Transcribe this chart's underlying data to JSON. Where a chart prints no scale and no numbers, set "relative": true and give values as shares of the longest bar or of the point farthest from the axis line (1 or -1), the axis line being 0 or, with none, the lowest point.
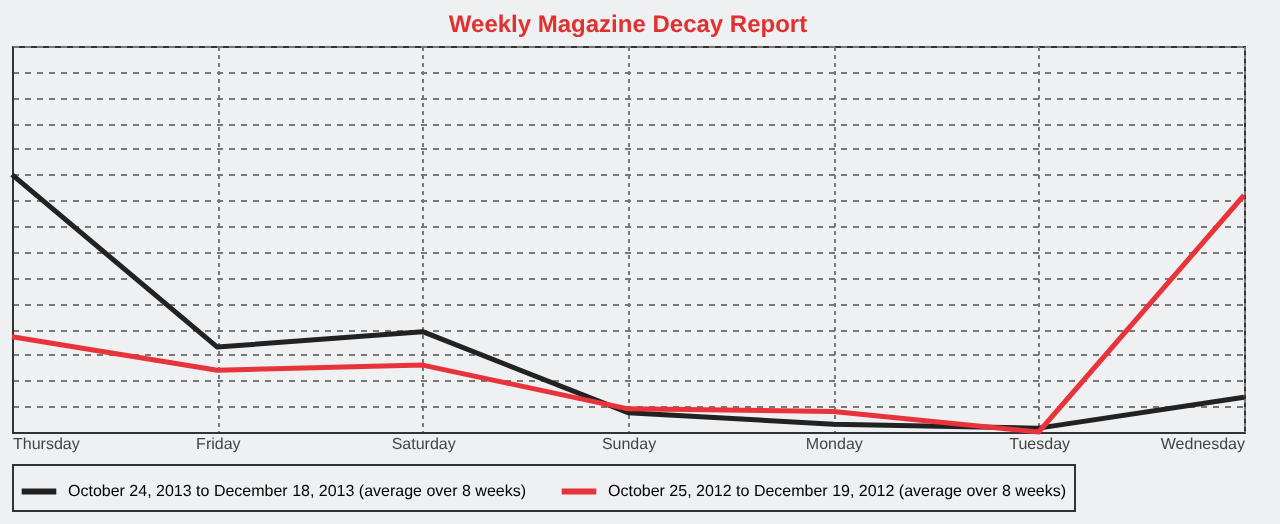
{
  "chart_data": {
    "type": "line",
    "title": "Weekly Magazine Decay Report",
    "relative": true,
    "grid": true,
    "legend": "bottom",
    "line_style": "solid",
    "marker": "none",
    "categories": [
      "Thursday",
      "Friday",
      "Saturday",
      "Sunday",
      "Monday",
      "Tuesday",
      "Wednesday"
    ],
    "series": [
      {
        "name": "October 24, 2013 to December 18, 2013 (average over 8 weeks)",
        "color": "#222222",
        "values": [
          1,
          0.33,
          0.39,
          0.075,
          0.03,
          0.015,
          0.135
        ]
      },
      {
        "name": "October 25, 2012 to December 19, 2012 (average over 8 weeks)",
        "color": "#e8333a",
        "values": [
          0.37,
          0.24,
          0.26,
          0.09,
          0.08,
          0.0,
          0.92
        ]
      }
    ]
  }
}
